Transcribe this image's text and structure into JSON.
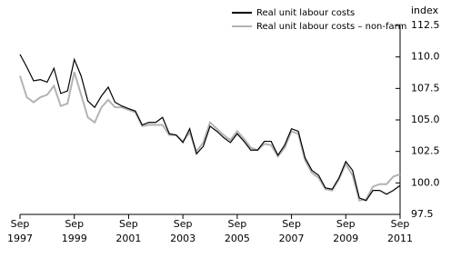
{
  "chart_data": {
    "type": "line",
    "y_axis_label": "index",
    "categories": [
      "Sep 1997",
      null,
      null,
      null,
      null,
      null,
      null,
      null,
      "Sep 1999",
      null,
      null,
      null,
      null,
      null,
      null,
      null,
      "Sep 2001",
      null,
      null,
      null,
      null,
      null,
      null,
      null,
      "Sep 2003",
      null,
      null,
      null,
      null,
      null,
      null,
      null,
      "Sep 2005",
      null,
      null,
      null,
      null,
      null,
      null,
      null,
      "Sep 2007",
      null,
      null,
      null,
      null,
      null,
      null,
      null,
      "Sep 2009",
      null,
      null,
      null,
      null,
      null,
      null,
      null,
      "Sep 2011"
    ],
    "series": [
      {
        "name": "Real unit labour costs",
        "color": "#000000",
        "values": [
          110.2,
          109.2,
          108.1,
          108.2,
          108.0,
          109.1,
          107.1,
          107.3,
          109.8,
          108.5,
          106.5,
          106.0,
          106.9,
          107.6,
          106.4,
          106.1,
          105.9,
          105.7,
          104.6,
          104.8,
          104.8,
          105.2,
          103.9,
          103.8,
          103.2,
          104.3,
          102.3,
          102.9,
          104.5,
          104.1,
          103.6,
          103.2,
          103.9,
          103.3,
          102.6,
          102.6,
          103.3,
          103.3,
          102.2,
          103.0,
          104.3,
          104.1,
          102.0,
          101.0,
          100.6,
          99.6,
          99.5,
          100.4,
          101.7,
          101.0,
          98.8,
          98.6,
          99.4,
          99.4,
          99.1,
          99.4,
          99.8
        ]
      },
      {
        "name": "Real unit labour costs – non-farm",
        "color": "#b3b3b3",
        "values": [
          108.5,
          106.8,
          106.4,
          106.8,
          107.0,
          107.7,
          106.1,
          106.3,
          108.8,
          107.0,
          105.2,
          104.8,
          106.0,
          106.6,
          106.0,
          106.0,
          105.8,
          105.6,
          104.5,
          104.6,
          104.6,
          104.6,
          103.8,
          103.8,
          103.3,
          104.0,
          102.5,
          103.2,
          104.8,
          104.3,
          103.8,
          103.4,
          104.1,
          103.5,
          102.8,
          102.6,
          103.1,
          103.0,
          102.1,
          102.8,
          104.1,
          103.9,
          101.8,
          100.8,
          100.4,
          99.5,
          99.4,
          100.3,
          101.5,
          100.6,
          98.6,
          98.7,
          99.7,
          99.9,
          99.9,
          100.5,
          100.7
        ]
      }
    ],
    "ylim": [
      97.5,
      112.5
    ],
    "yticks": [
      97.5,
      {
        "value": 100,
        "label": "100.0"
      },
      102.5,
      {
        "value": 105,
        "label": "105.0"
      },
      107.5,
      {
        "value": 110,
        "label": "110.0"
      },
      112.5
    ],
    "grid": false,
    "legend": "top"
  }
}
